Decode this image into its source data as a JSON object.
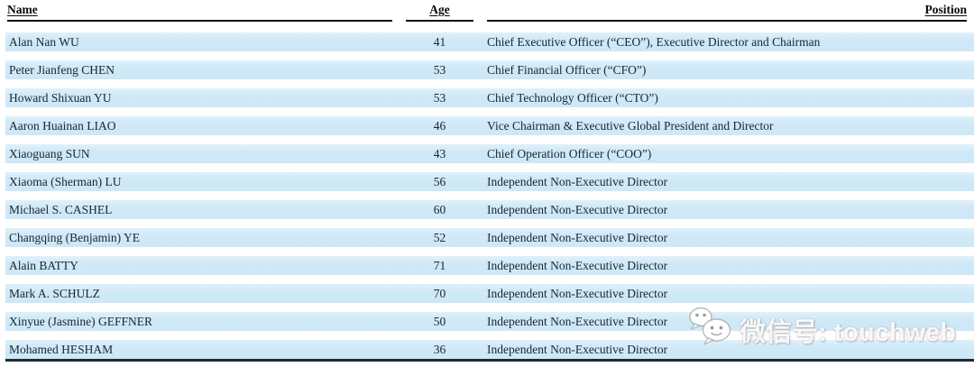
{
  "table": {
    "columns": [
      {
        "label": "Name"
      },
      {
        "label": "Age"
      },
      {
        "label": "Position"
      }
    ],
    "rows": [
      {
        "name": "Alan Nan WU",
        "age": "41",
        "position": "Chief Executive Officer (“CEO”), Executive Director and Chairman"
      },
      {
        "name": "Peter Jianfeng CHEN",
        "age": "53",
        "position": "Chief Financial Officer (“CFO”)"
      },
      {
        "name": "Howard Shixuan YU",
        "age": "53",
        "position": "Chief Technology Officer (“CTO”)"
      },
      {
        "name": "Aaron Huainan LIAO",
        "age": "46",
        "position": "Vice Chairman & Executive Global President and Director"
      },
      {
        "name": "Xiaoguang SUN",
        "age": "43",
        "position": "Chief Operation Officer (“COO”)"
      },
      {
        "name": "Xiaoma (Sherman) LU",
        "age": "56",
        "position": "Independent Non-Executive Director"
      },
      {
        "name": "Michael S. CASHEL",
        "age": "60",
        "position": "Independent Non-Executive Director"
      },
      {
        "name": "Changqing (Benjamin) YE",
        "age": "52",
        "position": "Independent Non-Executive Director"
      },
      {
        "name": "Alain BATTY",
        "age": "71",
        "position": "Independent Non-Executive Director"
      },
      {
        "name": "Mark A. SCHULZ",
        "age": "70",
        "position": "Independent Non-Executive Director"
      },
      {
        "name": "Xinyue (Jasmine) GEFFNER",
        "age": "50",
        "position": "Independent Non-Executive Director"
      },
      {
        "name": "Mohamed HESHAM",
        "age": "36",
        "position": "Independent Non-Executive Director"
      }
    ]
  },
  "watermark": {
    "text": "微信号: touchweb",
    "icon": "wechat-icon"
  },
  "colors": {
    "stripe": "#cfe9f7",
    "header_rule": "#0a0a0a",
    "bottom_rule": "#1c2b3a",
    "text": "#1b2533"
  }
}
